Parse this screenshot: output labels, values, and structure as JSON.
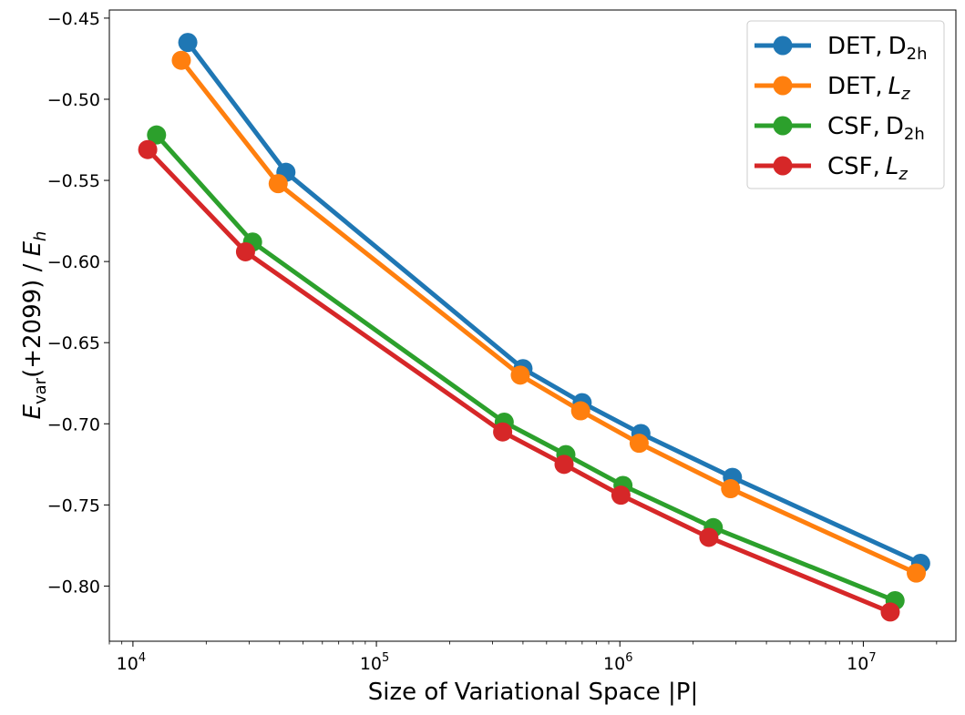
{
  "chart_data": {
    "type": "line",
    "xscale": "log",
    "xlabel": "Size of Variational Space |P|",
    "ylabel": "E_var(+2099) / E_h",
    "xlim": [
      8000,
      24000000
    ],
    "ylim": [
      -0.834,
      -0.445
    ],
    "xticks": [
      {
        "value": 10000,
        "base": "10",
        "exp": "4"
      },
      {
        "value": 100000,
        "base": "10",
        "exp": "5"
      },
      {
        "value": 1000000,
        "base": "10",
        "exp": "6"
      },
      {
        "value": 10000000,
        "base": "10",
        "exp": "7"
      }
    ],
    "yticks": [
      {
        "value": -0.45,
        "label": "−0.45"
      },
      {
        "value": -0.5,
        "label": "−0.50"
      },
      {
        "value": -0.55,
        "label": "−0.55"
      },
      {
        "value": -0.6,
        "label": "−0.60"
      },
      {
        "value": -0.65,
        "label": "−0.65"
      },
      {
        "value": -0.7,
        "label": "−0.70"
      },
      {
        "value": -0.75,
        "label": "−0.75"
      },
      {
        "value": -0.8,
        "label": "−0.80"
      }
    ],
    "legend_position": "top-right",
    "series": [
      {
        "name": "DET, D2h",
        "label_main": "DET,",
        "label_sym": "D",
        "label_sub": "2h",
        "label_style": "roman",
        "color": "#1f77b4",
        "x": [
          16800,
          42500,
          400000,
          700000,
          1220000,
          2900000,
          17200000
        ],
        "y": [
          -0.465,
          -0.545,
          -0.666,
          -0.687,
          -0.706,
          -0.733,
          -0.786
        ]
      },
      {
        "name": "DET, Lz",
        "label_main": "DET,",
        "label_sym": "L",
        "label_sub": "z",
        "label_style": "italic",
        "color": "#ff7f0e",
        "x": [
          15800,
          39500,
          390000,
          690000,
          1200000,
          2850000,
          16500000
        ],
        "y": [
          -0.476,
          -0.552,
          -0.67,
          -0.692,
          -0.712,
          -0.74,
          -0.792
        ]
      },
      {
        "name": "CSF, D2h",
        "label_main": "CSF,",
        "label_sym": "D",
        "label_sub": "2h",
        "label_style": "roman",
        "color": "#2ca02c",
        "x": [
          12500,
          31000,
          335000,
          600000,
          1030000,
          2420000,
          13500000
        ],
        "y": [
          -0.522,
          -0.588,
          -0.699,
          -0.719,
          -0.738,
          -0.764,
          -0.809
        ]
      },
      {
        "name": "CSF, Lz",
        "label_main": "CSF,",
        "label_sym": "L",
        "label_sub": "z",
        "label_style": "italic",
        "color": "#d62728",
        "x": [
          11500,
          29000,
          330000,
          590000,
          1010000,
          2320000,
          12900000
        ],
        "y": [
          -0.531,
          -0.594,
          -0.705,
          -0.725,
          -0.744,
          -0.77,
          -0.816
        ]
      }
    ]
  }
}
